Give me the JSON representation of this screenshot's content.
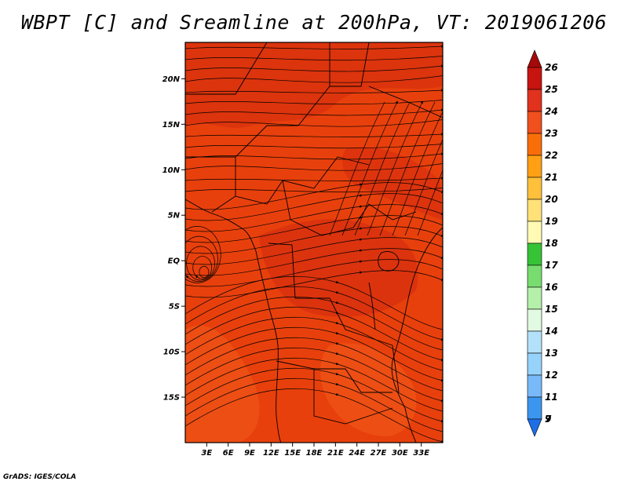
{
  "title": "WBPT [C] and Sreamline at 200hPa, VT: 2019061206",
  "footer": "GrADS: IGES/COLA",
  "map": {
    "lon_range": [
      0,
      36
    ],
    "lat_range": [
      -20,
      24
    ],
    "x_ticks": [
      {
        "value": 3,
        "label": "3E"
      },
      {
        "value": 6,
        "label": "6E"
      },
      {
        "value": 9,
        "label": "9E"
      },
      {
        "value": 12,
        "label": "12E"
      },
      {
        "value": 15,
        "label": "15E"
      },
      {
        "value": 18,
        "label": "18E"
      },
      {
        "value": 21,
        "label": "21E"
      },
      {
        "value": 24,
        "label": "24E"
      },
      {
        "value": 27,
        "label": "27E"
      },
      {
        "value": 30,
        "label": "30E"
      },
      {
        "value": 33,
        "label": "33E"
      }
    ],
    "y_ticks": [
      {
        "value": 20,
        "label": "20N"
      },
      {
        "value": 15,
        "label": "15N"
      },
      {
        "value": 10,
        "label": "10N"
      },
      {
        "value": 5,
        "label": "5N"
      },
      {
        "value": 0,
        "label": "EQ"
      },
      {
        "value": -5,
        "label": "5S"
      },
      {
        "value": -10,
        "label": "10S"
      },
      {
        "value": -15,
        "label": "15S"
      }
    ],
    "base_color": "#e8400c"
  },
  "colorbar": {
    "levels": [
      {
        "label": "26",
        "color": "#a50a0a"
      },
      {
        "label": "25",
        "color": "#c8140f"
      },
      {
        "label": "24",
        "color": "#e1321e"
      },
      {
        "label": "23",
        "color": "#f0501e"
      },
      {
        "label": "22",
        "color": "#fa6e0a"
      },
      {
        "label": "21",
        "color": "#ffa014"
      },
      {
        "label": "20",
        "color": "#ffc03c"
      },
      {
        "label": "19",
        "color": "#ffe178"
      },
      {
        "label": "18",
        "color": "#fffab4"
      },
      {
        "label": "17",
        "color": "#36c336"
      },
      {
        "label": "16",
        "color": "#78dc6e"
      },
      {
        "label": "15",
        "color": "#b4f0aa"
      },
      {
        "label": "14",
        "color": "#e1fae1"
      },
      {
        "label": "13",
        "color": "#b4e1fa"
      },
      {
        "label": "12",
        "color": "#96d2fa"
      },
      {
        "label": "11",
        "color": "#78b9fa"
      },
      {
        "label": "9",
        "color": "#3c96f0"
      },
      {
        "label": "7",
        "color": "#1e6ee6"
      }
    ]
  }
}
